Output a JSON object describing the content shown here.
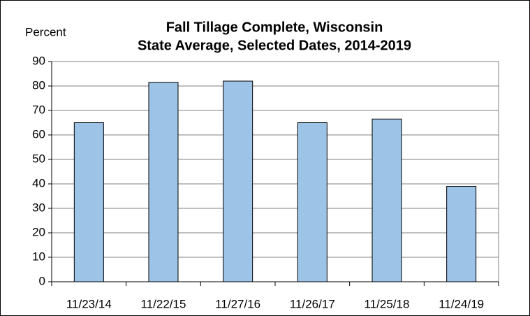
{
  "chart_data": {
    "type": "bar",
    "title": "Fall Tillage Complete, Wisconsin",
    "subtitle": "State Average, Selected Dates, 2014-2019",
    "y_label": "Percent",
    "categories": [
      "11/23/14",
      "11/22/15",
      "11/27/16",
      "11/26/17",
      "11/25/18",
      "11/24/19"
    ],
    "values": [
      65,
      81.5,
      82,
      65,
      66.5,
      39
    ],
    "color": "#9dc3e6",
    "ylim": [
      0,
      90
    ],
    "yticks": [
      0,
      10,
      20,
      30,
      40,
      50,
      60,
      70,
      80,
      90
    ],
    "grid": true
  }
}
